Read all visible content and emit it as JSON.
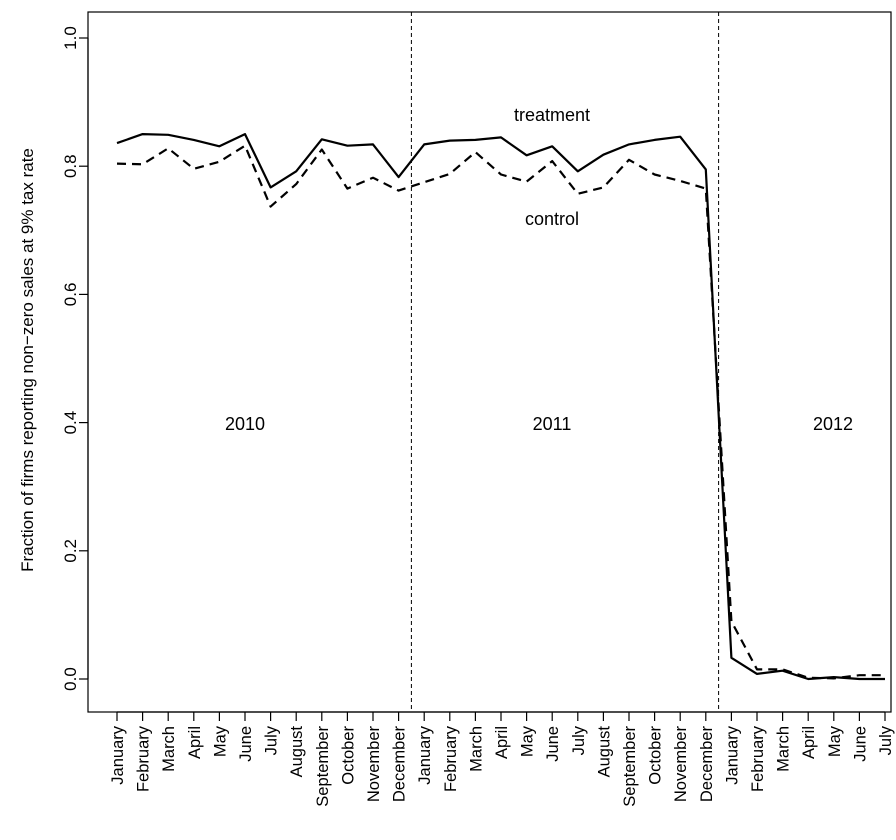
{
  "chart_data": {
    "type": "line",
    "title": "",
    "xlabel": "",
    "ylabel": "Fraction of firms reporting non−zero sales at 9% tax rate",
    "ylim": [
      0.0,
      1.0
    ],
    "yticks": [
      "0.0",
      "0.2",
      "0.4",
      "0.6",
      "0.8",
      "1.0"
    ],
    "grid": false,
    "categories": [
      "January",
      "February",
      "March",
      "April",
      "May",
      "June",
      "July",
      "August",
      "September",
      "October",
      "November",
      "December",
      "January",
      "February",
      "March",
      "April",
      "May",
      "June",
      "July",
      "August",
      "September",
      "October",
      "November",
      "December",
      "January",
      "February",
      "March",
      "April",
      "May",
      "June",
      "July"
    ],
    "series": [
      {
        "name": "treatment",
        "style": "solid",
        "values": [
          0.836,
          0.85,
          0.849,
          0.841,
          0.831,
          0.85,
          0.767,
          0.792,
          0.842,
          0.832,
          0.834,
          0.783,
          0.834,
          0.84,
          0.841,
          0.845,
          0.817,
          0.831,
          0.792,
          0.818,
          0.834,
          0.841,
          0.846,
          0.795,
          0.033,
          0.008,
          0.013,
          0.0,
          0.003,
          0.0,
          0.0
        ]
      },
      {
        "name": "control",
        "style": "dashed",
        "values": [
          0.804,
          0.803,
          0.828,
          0.796,
          0.807,
          0.832,
          0.737,
          0.772,
          0.826,
          0.765,
          0.782,
          0.762,
          0.775,
          0.788,
          0.822,
          0.787,
          0.776,
          0.808,
          0.757,
          0.767,
          0.81,
          0.787,
          0.777,
          0.765,
          0.09,
          0.015,
          0.015,
          0.002,
          0.001,
          0.006,
          0.006
        ]
      }
    ],
    "annotations": {
      "treatment_label": "treatment",
      "control_label": "control",
      "year_2010": "2010",
      "year_2011": "2011",
      "year_2012": "2012"
    },
    "year_dividers_after_index": [
      11,
      23
    ]
  }
}
